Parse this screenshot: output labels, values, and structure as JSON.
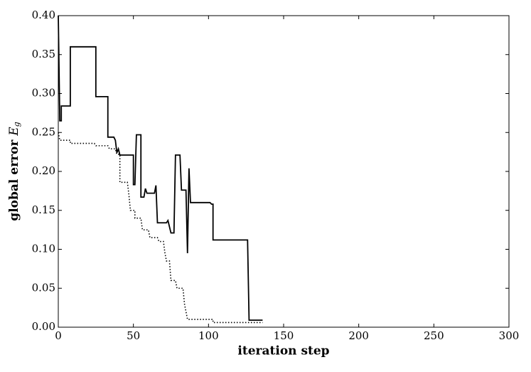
{
  "chart_data": {
    "type": "line",
    "xlabel": "iteration step",
    "ylabel": "global error",
    "ylabel_symbol": "E",
    "ylabel_subscript": "g",
    "xlim": [
      0,
      300
    ],
    "xticks": [
      0,
      50,
      100,
      150,
      200,
      250,
      300
    ],
    "ylim": [
      0,
      0.4
    ],
    "yticks": [
      {
        "value": 0,
        "label": "0.00"
      },
      0.05,
      {
        "value": 0.1,
        "label": "0.10"
      },
      0.15,
      {
        "value": 0.2,
        "label": "0.20"
      },
      0.25,
      {
        "value": 0.3,
        "label": "0.30"
      },
      0.35,
      {
        "value": 0.4,
        "label": "0.40"
      }
    ],
    "grid": false,
    "series": [
      {
        "color": "#000000",
        "style": "solid",
        "x": [
          0,
          1,
          2,
          2,
          8,
          8,
          25,
          25,
          33,
          33,
          37,
          38,
          39,
          40,
          41,
          50,
          50,
          51,
          52,
          55,
          55,
          57,
          58,
          59,
          64,
          65,
          66,
          72,
          73,
          75,
          77,
          78,
          81,
          82,
          85,
          86,
          87,
          88,
          101,
          102,
          103,
          103,
          126,
          127,
          136
        ],
        "values": [
          0.4,
          0.265,
          0.265,
          0.284,
          0.284,
          0.36,
          0.36,
          0.296,
          0.296,
          0.244,
          0.244,
          0.24,
          0.224,
          0.229,
          0.221,
          0.221,
          0.183,
          0.183,
          0.247,
          0.247,
          0.167,
          0.167,
          0.178,
          0.172,
          0.172,
          0.182,
          0.134,
          0.134,
          0.137,
          0.121,
          0.121,
          0.221,
          0.221,
          0.176,
          0.176,
          0.095,
          0.204,
          0.16,
          0.16,
          0.158,
          0.158,
          0.112,
          0.112,
          0.009,
          0.009
        ]
      },
      {
        "color": "#000000",
        "style": "dotted",
        "x": [
          0,
          1,
          8,
          8,
          24,
          25,
          33,
          34,
          38,
          39,
          41,
          41,
          46,
          47,
          48,
          51,
          51,
          55,
          56,
          60,
          61,
          66,
          67,
          70,
          71,
          72,
          74,
          75,
          78,
          79,
          83,
          84,
          86,
          103,
          103,
          136
        ],
        "values": [
          0.25,
          0.24,
          0.24,
          0.236,
          0.236,
          0.233,
          0.233,
          0.229,
          0.229,
          0.222,
          0.222,
          0.186,
          0.186,
          0.17,
          0.15,
          0.15,
          0.14,
          0.14,
          0.125,
          0.125,
          0.115,
          0.115,
          0.11,
          0.11,
          0.095,
          0.085,
          0.085,
          0.06,
          0.06,
          0.05,
          0.05,
          0.03,
          0.01,
          0.01,
          0.006,
          0.006
        ]
      }
    ]
  }
}
